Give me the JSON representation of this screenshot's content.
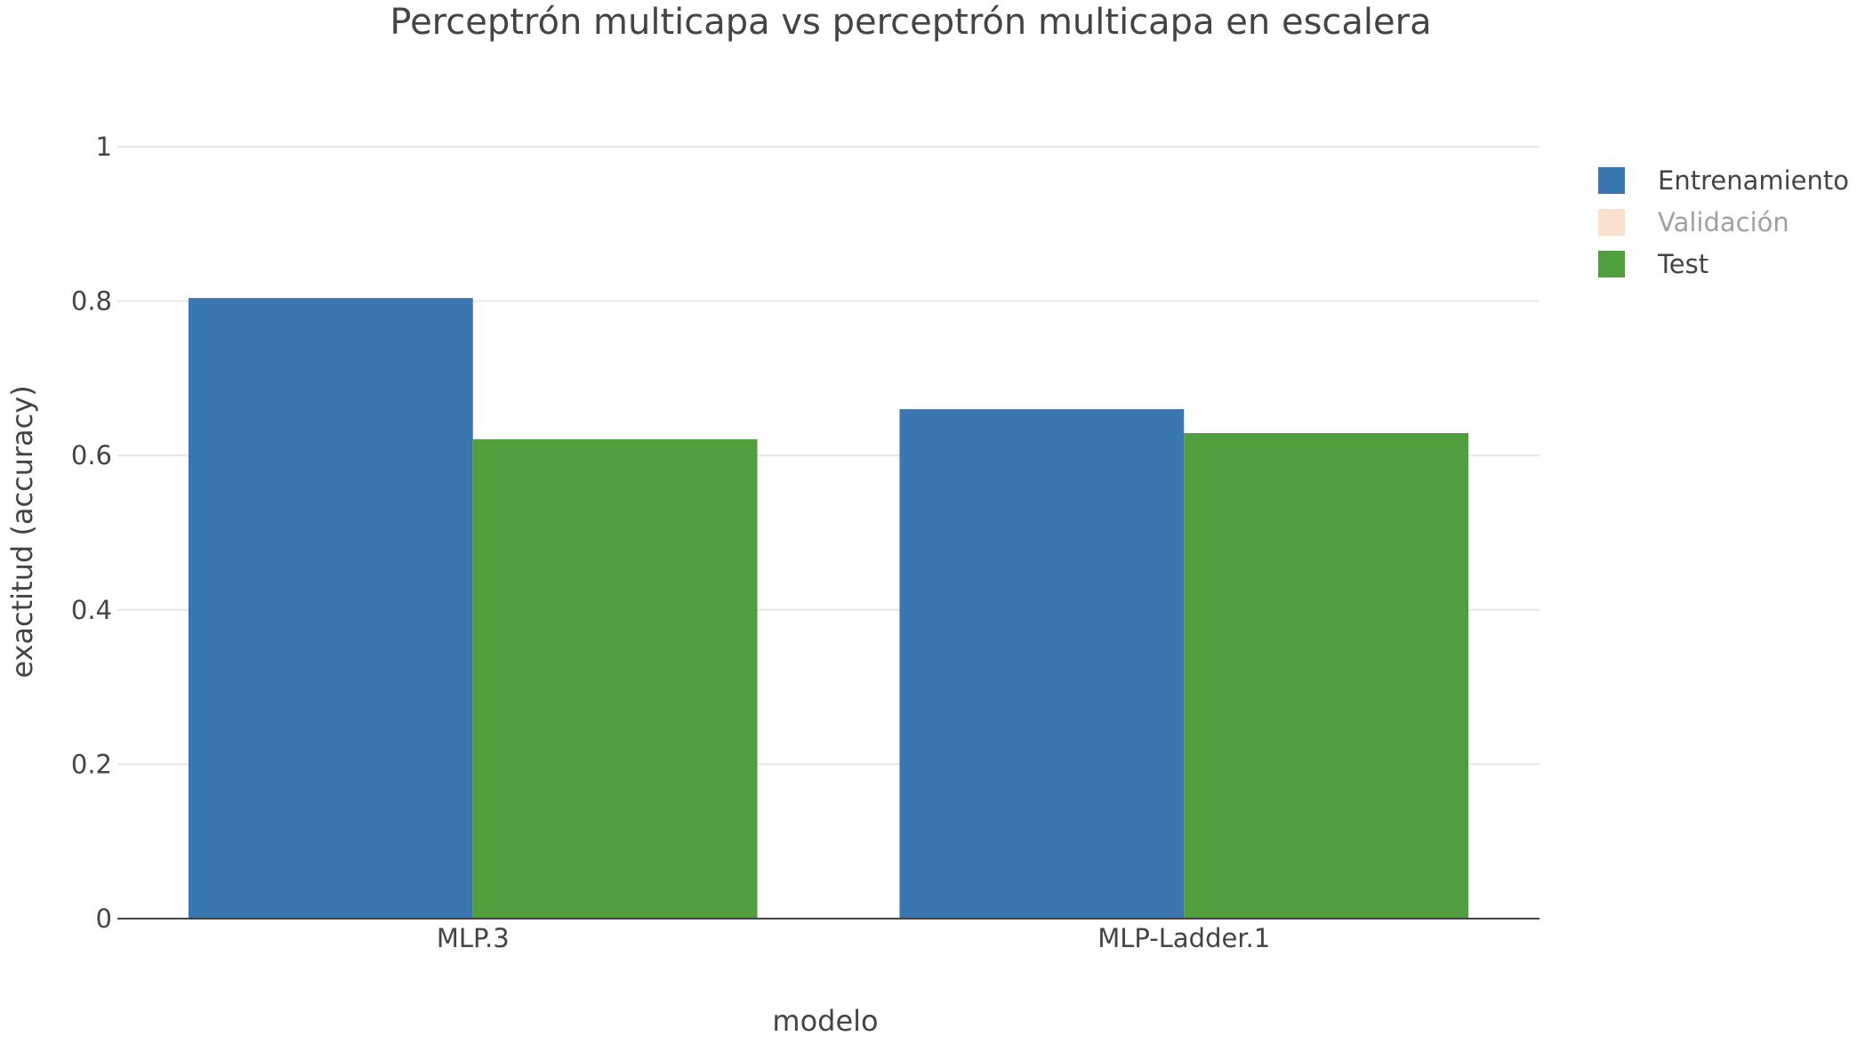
{
  "chart_data": {
    "type": "bar",
    "title": "Perceptrón multicapa vs perceptrón multicapa en escalera",
    "xlabel": "modelo",
    "ylabel": "exactitud (accuracy)",
    "categories": [
      "MLP.3",
      "MLP-Ladder.1"
    ],
    "series": [
      {
        "name": "Entrenamiento",
        "color": "#3a76af",
        "visible": true,
        "values": [
          0.804,
          0.66
        ]
      },
      {
        "name": "Validación",
        "color": "#f7c39c",
        "visible": false,
        "values": [
          null,
          null
        ]
      },
      {
        "name": "Test",
        "color": "#519e3e",
        "visible": true,
        "values": [
          0.621,
          0.629
        ]
      }
    ],
    "ylim": [
      0,
      1
    ],
    "yticks": [
      0,
      0.2,
      0.4,
      0.6,
      0.8,
      1
    ],
    "ytick_labels": [
      "0",
      "0.2",
      "0.4",
      "0.6",
      "0.8",
      "1"
    ],
    "grid": true,
    "legend_position": "top-right"
  }
}
